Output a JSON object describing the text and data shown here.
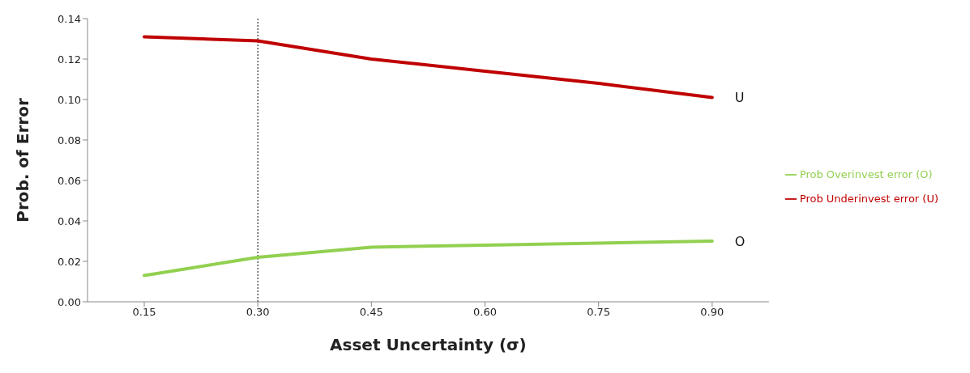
{
  "chart_data": {
    "type": "line",
    "xlabel": "Asset Uncertainty (σ)",
    "ylabel": "Prob. of Error",
    "categories": [
      "0.15",
      "0.30",
      "0.45",
      "0.60",
      "0.75",
      "0.90"
    ],
    "series": [
      {
        "name": "Prob Underinvest error (U)",
        "color": "#c00000",
        "values": [
          0.131,
          0.129,
          0.12,
          0.114,
          0.108,
          0.101
        ]
      },
      {
        "name": "Prob Overinvest error (O)",
        "color": "#92d050",
        "values": [
          0.013,
          0.022,
          0.027,
          0.028,
          0.029,
          0.03
        ]
      }
    ],
    "ylim": [
      0,
      0.14
    ],
    "yticks": [
      {
        "value": 0,
        "label": "0.00"
      },
      {
        "value": 0.02,
        "label": "0.02"
      },
      {
        "value": 0.04,
        "label": "0.04"
      },
      {
        "value": 0.06,
        "label": "0.06"
      },
      {
        "value": 0.08,
        "label": "0.08"
      },
      {
        "value": 0.1,
        "label": "0.10"
      },
      {
        "value": 0.12,
        "label": "0.12"
      },
      {
        "value": 0.14,
        "label": "0.14"
      }
    ],
    "ref_lines": [
      {
        "axis": "x",
        "value": "0.30",
        "color": "#000000",
        "line_style": "dotted"
      }
    ],
    "annotations": [
      {
        "text": "U",
        "x": "0.90",
        "y": 0.101
      },
      {
        "text": "O",
        "x": "0.90",
        "y": 0.03
      }
    ],
    "grid": false,
    "legend": "right",
    "marker": "none",
    "line_style": "solid"
  }
}
